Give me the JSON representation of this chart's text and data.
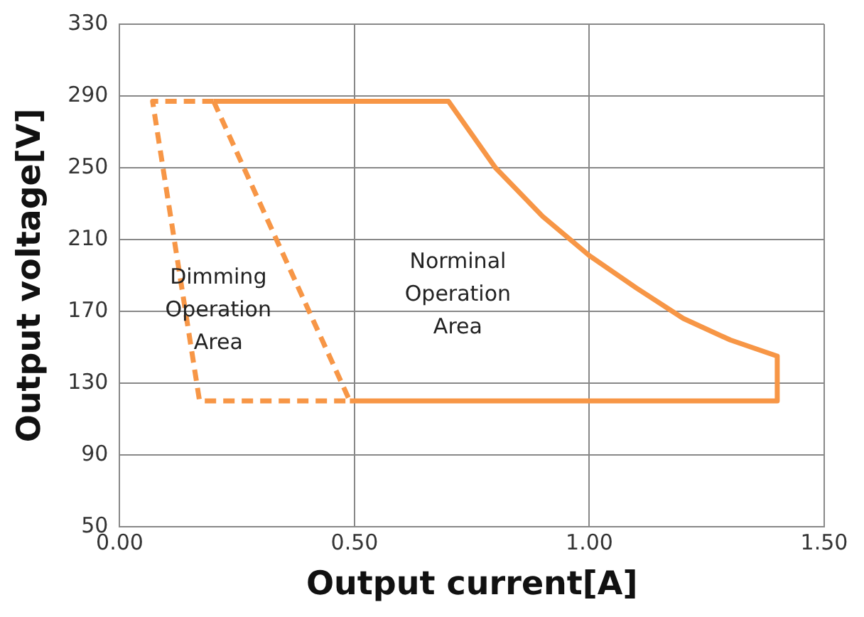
{
  "chart_data": {
    "type": "line",
    "xlabel": "Output current[A]",
    "ylabel": "Output voltage[V]",
    "xlim": [
      0,
      1.5
    ],
    "xticks": [
      {
        "value": 0,
        "label": "0.00"
      },
      {
        "value": 0.5,
        "label": "0.50"
      },
      {
        "value": 1,
        "label": "1.00"
      },
      {
        "value": 1.5,
        "label": "1.50"
      }
    ],
    "ylim": [
      50,
      330
    ],
    "yticks": [
      50,
      90,
      130,
      170,
      210,
      250,
      290,
      330
    ],
    "series": [
      {
        "color": "#f79646",
        "line_style": "solid",
        "x": [
          0.2,
          0.7,
          0.8,
          0.9,
          1.0,
          1.1,
          1.2,
          1.3,
          1.4,
          1.4,
          0.49
        ],
        "values": [
          287,
          287,
          250,
          223,
          201,
          183,
          166,
          154,
          145,
          120,
          120
        ]
      },
      {
        "color": "#f79646",
        "line_style": "dashed",
        "x": [
          0.2,
          0.07,
          0.17,
          0.49
        ],
        "values": [
          287,
          287,
          120,
          120
        ]
      },
      {
        "color": "#f79646",
        "line_style": "dashed",
        "x": [
          0.2,
          0.49
        ],
        "values": [
          287,
          120
        ]
      }
    ],
    "annotations": [
      "Dimming Operation Area",
      "Norminal Operation Area"
    ],
    "grid": true,
    "legend": false,
    "marker": "none"
  }
}
